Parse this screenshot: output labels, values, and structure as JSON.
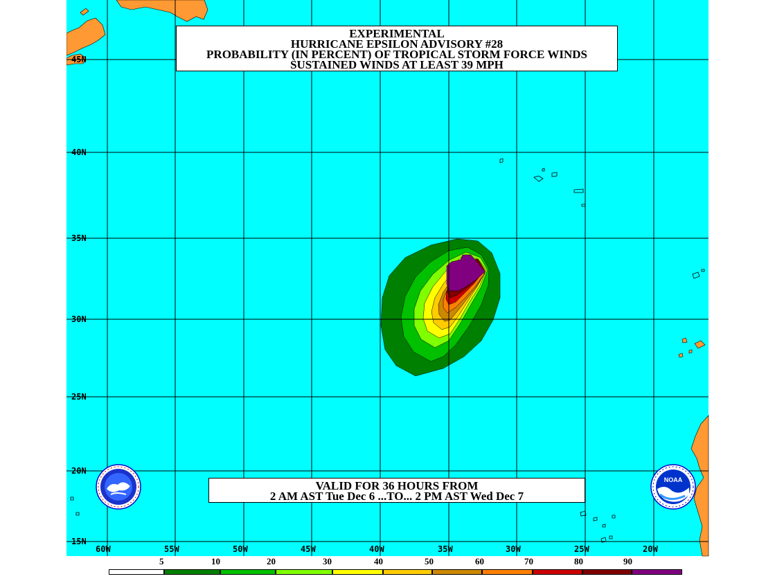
{
  "title": {
    "line1": "EXPERIMENTAL",
    "line2": "HURRICANE EPSILON ADVISORY #28",
    "line3": "PROBABILITY (IN PERCENT) OF TROPICAL STORM FORCE WINDS",
    "line4": "SUSTAINED WINDS AT LEAST 39 MPH"
  },
  "valid": {
    "line1": "VALID FOR 36 HOURS FROM",
    "line2": "2 AM AST Tue Dec 6 ...TO... 2 PM AST Wed Dec 7"
  },
  "lat_labels": [
    "45N",
    "40N",
    "35N",
    "30N",
    "25N",
    "20N",
    "15N"
  ],
  "lon_labels": [
    "60W",
    "55W",
    "50W",
    "45W",
    "40W",
    "35W",
    "30W",
    "25W",
    "20W"
  ],
  "legend": {
    "labels": [
      "5",
      "10",
      "20",
      "30",
      "40",
      "50",
      "60",
      "70",
      "80",
      "90"
    ],
    "colors": [
      "#ffffff",
      "#008000",
      "#00c000",
      "#80ff00",
      "#ffff00",
      "#ffcc00",
      "#cc8800",
      "#ff8000",
      "#cc0000",
      "#800000",
      "#800080"
    ]
  },
  "colors": {
    "ocean": "#00ffff",
    "land": "#ff9933",
    "grid": "#000000"
  },
  "logos": {
    "left": "national-weather-service-logo",
    "right": "noaa-logo",
    "noaa_text": "NOAA"
  }
}
